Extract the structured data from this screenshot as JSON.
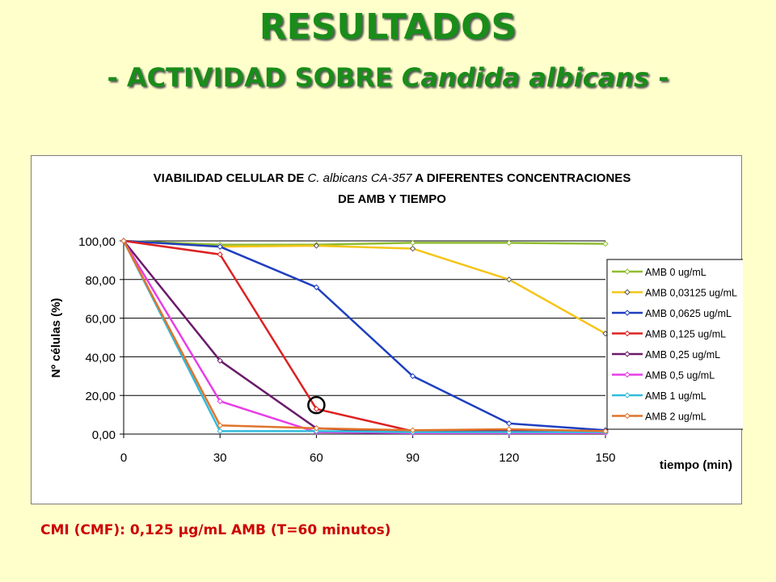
{
  "slide": {
    "title": "RESULTADOS",
    "subtitle_prefix": "- ACTIVIDAD SOBRE ",
    "subtitle_italic": "Candida albicans",
    "subtitle_suffix": " -",
    "footer": "CMI (CMF): 0,125 µg/mL AMB (T=60 minutos)"
  },
  "chart_data": {
    "type": "line",
    "title_part1": "VIABILIDAD CELULAR DE ",
    "title_italic": "C. albicans CA-357",
    "title_part2": " A DIFERENTES CONCENTRACIONES",
    "title_line2": "DE AMB Y TIEMPO",
    "xlabel": "tiempo (min)",
    "ylabel": "Nº células (%)",
    "x": [
      0,
      30,
      60,
      90,
      120,
      150
    ],
    "x_tick_labels": [
      "0",
      "30",
      "60",
      "90",
      "120",
      "150"
    ],
    "ylim": [
      0,
      100
    ],
    "y_ticks": [
      0,
      20,
      40,
      60,
      80,
      100
    ],
    "y_tick_labels": [
      "0,00",
      "20,00",
      "40,00",
      "60,00",
      "80,00",
      "100,00"
    ],
    "grid": "horizontal",
    "legend_position": "right",
    "series": [
      {
        "name": "AMB 0 ug/mL",
        "color": "#8fbc2f",
        "values": [
          100,
          98,
          98,
          99,
          99,
          98.5
        ]
      },
      {
        "name": "AMB 0,03125 ug/mL",
        "color": "#f5c518",
        "values": [
          100,
          97,
          97.5,
          96,
          80,
          52
        ]
      },
      {
        "name": "AMB 0,0625 ug/mL",
        "color": "#1f3fbf",
        "values": [
          100,
          97,
          76,
          30,
          5.5,
          2
        ]
      },
      {
        "name": "AMB 0,125 ug/mL",
        "color": "#dd2222",
        "values": [
          100,
          93,
          13,
          1.5,
          1.5,
          1.5
        ]
      },
      {
        "name": "AMB 0,25 ug/mL",
        "color": "#6a1b6a",
        "values": [
          100,
          38,
          3,
          1,
          1.5,
          1
        ]
      },
      {
        "name": "AMB 0,5 ug/mL",
        "color": "#e83de8",
        "values": [
          100,
          17,
          1,
          0.5,
          0.5,
          0.5
        ]
      },
      {
        "name": "AMB 1 ug/mL",
        "color": "#33bbdd",
        "values": [
          100,
          1.5,
          1.5,
          1,
          1,
          1
        ]
      },
      {
        "name": "AMB 2 ug/mL",
        "color": "#e0742a",
        "values": [
          100,
          4.5,
          3,
          2,
          2.5,
          1.5
        ]
      }
    ],
    "annotation": {
      "type": "circle",
      "x": 60,
      "y": 15
    }
  }
}
